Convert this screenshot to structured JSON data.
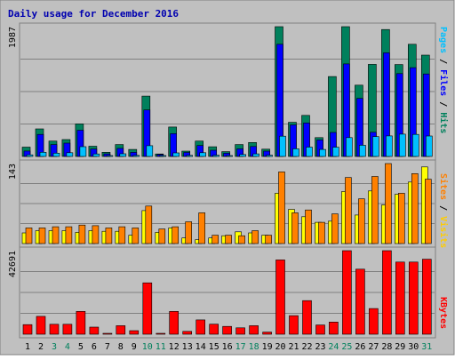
{
  "title": "Daily usage for December 2016",
  "colors": {
    "background": "#C0C0C0",
    "frame": "#808080",
    "title": "#0000B0",
    "hits": "#00805C",
    "files": "#0000FF",
    "pages": "#00C0FF",
    "visits": "#FFFF00",
    "sites": "#FF8000",
    "kbytes": "#FF0000",
    "weekend_label": "#00805C",
    "weekday_label": "#000000"
  },
  "panels": {
    "requests": {
      "max_label": "1987",
      "legend": [
        "Pages",
        "Files",
        "Hits"
      ]
    },
    "visitors": {
      "max_label": "143",
      "legend": [
        "Sites",
        "Visits"
      ]
    },
    "kbytes": {
      "max_label": "42691",
      "legend": [
        "KBytes"
      ]
    }
  },
  "chart_data": {
    "type": "bar",
    "title": "Daily usage for December 2016",
    "categories": [
      "1",
      "2",
      "3",
      "4",
      "5",
      "6",
      "7",
      "8",
      "9",
      "10",
      "11",
      "12",
      "13",
      "14",
      "15",
      "16",
      "17",
      "18",
      "19",
      "20",
      "21",
      "22",
      "23",
      "24",
      "25",
      "26",
      "27",
      "28",
      "29",
      "30",
      "31"
    ],
    "weekend_days": [
      "3",
      "4",
      "10",
      "11",
      "17",
      "18",
      "24",
      "25",
      "31"
    ],
    "charts": [
      {
        "panel": "requests",
        "ymax": 1987,
        "series": [
          {
            "name": "Hits",
            "values": [
              143,
              422,
              235,
              258,
              498,
              156,
              64,
              182,
              108,
              924,
              38,
              451,
              81,
              235,
              149,
              73,
              182,
              214,
              112,
              1987,
              523,
              629,
              289,
              1224,
              1987,
              1091,
              1410,
              1943,
              1407,
              1717,
              1551
            ]
          },
          {
            "name": "Files",
            "values": [
              83,
              337,
              182,
              204,
              401,
              114,
              40,
              124,
              63,
              712,
              29,
              350,
              61,
              167,
              95,
              49,
              117,
              153,
              82,
              1717,
              483,
              513,
              253,
              367,
              1417,
              889,
              370,
              1587,
              1269,
              1359,
              1263
            ]
          },
          {
            "name": "Pages",
            "values": [
              24,
              64,
              50,
              57,
              150,
              38,
              13,
              41,
              16,
              164,
              0,
              55,
              16,
              57,
              19,
              11,
              30,
              40,
              19,
              310,
              117,
              143,
              107,
              141,
              289,
              171,
              303,
              314,
              342,
              338,
              313
            ]
          }
        ]
      },
      {
        "panel": "visitors",
        "ymax": 143,
        "series": [
          {
            "name": "Visits",
            "values": [
              19,
              23,
              23,
              23,
              20,
              23,
              22,
              22,
              15,
              59,
              20,
              28,
              10,
              7,
              10,
              14,
              21,
              19,
              15,
              90,
              61,
              48,
              38,
              40,
              93,
              51,
              94,
              69,
              88,
              110,
              137
            ]
          },
          {
            "name": "Sites",
            "values": [
              28,
              28,
              30,
              30,
              33,
              32,
              28,
              30,
              28,
              67,
              26,
              30,
              39,
              55,
              15,
              15,
              14,
              23,
              15,
              128,
              55,
              60,
              38,
              53,
              118,
              80,
              120,
              143,
              90,
              125,
              115
            ]
          }
        ]
      },
      {
        "panel": "kbytes",
        "ymax": 42691,
        "series": [
          {
            "name": "KBytes",
            "values": [
              4890,
              9125,
              5104,
              5104,
              11683,
              3646,
              364,
              4378,
              1824,
              26273,
              0,
              11683,
              1459,
              7300,
              5112,
              4010,
              3274,
              4378,
              1094,
              37960,
              9487,
              17154,
              4744,
              6204,
              42691,
              33224,
              13140,
              42691,
              36860,
              36860,
              38325
            ]
          }
        ]
      }
    ]
  }
}
